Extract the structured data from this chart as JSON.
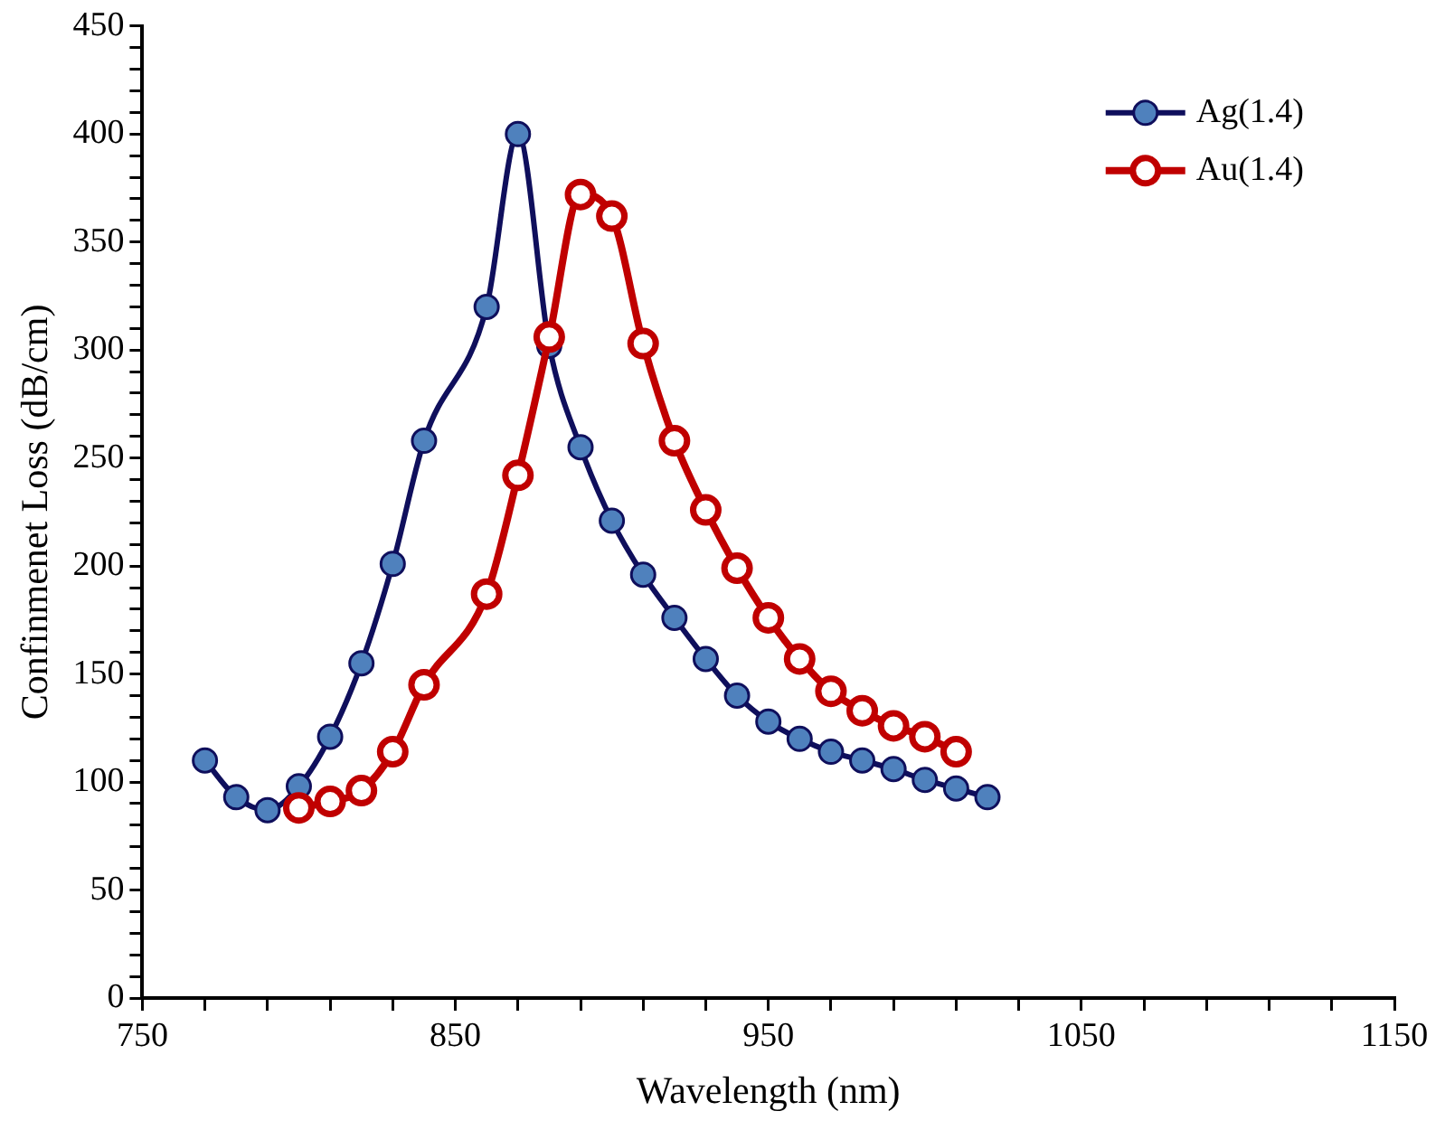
{
  "chart_data": {
    "type": "line",
    "xlabel": "Wavelength (nm)",
    "ylabel": "Confinmenet Loss (dB/cm)",
    "xlim": [
      750,
      1150
    ],
    "xticks": [
      750,
      850,
      950,
      1050,
      1150
    ],
    "ylim": [
      0,
      450
    ],
    "yticks": [
      0,
      50,
      100,
      150,
      200,
      250,
      300,
      350,
      400,
      450
    ],
    "grid": false,
    "legend": "top right",
    "marker": "circle",
    "line_style": "solid",
    "series": [
      {
        "name": "Ag(1.4)",
        "color": "#0f0f5c",
        "x": [
          770,
          780,
          790,
          800,
          810,
          820,
          830,
          840,
          860,
          870,
          880,
          890,
          900,
          910,
          920,
          930,
          940,
          950,
          960,
          970,
          980,
          990,
          1000,
          1010,
          1020
        ],
        "values": [
          110,
          93,
          87,
          98,
          121,
          155,
          201,
          258,
          320,
          400,
          302,
          255,
          221,
          196,
          176,
          157,
          140,
          128,
          120,
          114,
          110,
          106,
          101,
          97,
          93
        ]
      },
      {
        "name": "Au(1.4)",
        "color": "#c00000",
        "x": [
          800,
          810,
          820,
          830,
          840,
          860,
          870,
          880,
          890,
          900,
          910,
          920,
          930,
          940,
          950,
          960,
          970,
          980,
          990,
          1000,
          1010
        ],
        "values": [
          88,
          91,
          96,
          114,
          145,
          187,
          242,
          306,
          372,
          362,
          303,
          258,
          226,
          199,
          176,
          157,
          142,
          133,
          126,
          121,
          114
        ]
      }
    ]
  }
}
